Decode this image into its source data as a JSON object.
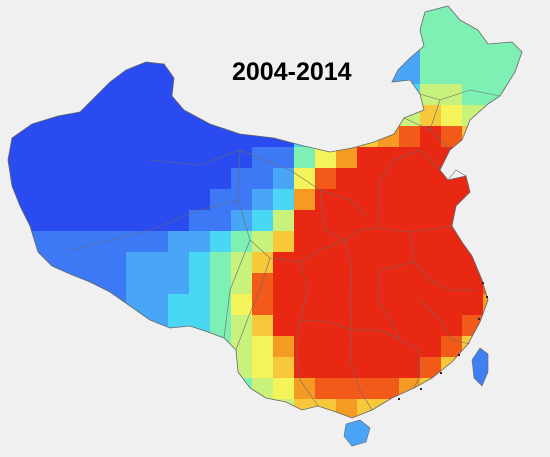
{
  "title": "2004-2014",
  "colors": {
    "background": "#f0f0f0",
    "border": "#666666",
    "scale": [
      "#2a4bf0",
      "#3d78f5",
      "#49a6f7",
      "#49d7f4",
      "#7ef0b4",
      "#c9f27c",
      "#f4f45a",
      "#f7c93a",
      "#f59a23",
      "#f25a1a",
      "#e82812"
    ]
  }
}
